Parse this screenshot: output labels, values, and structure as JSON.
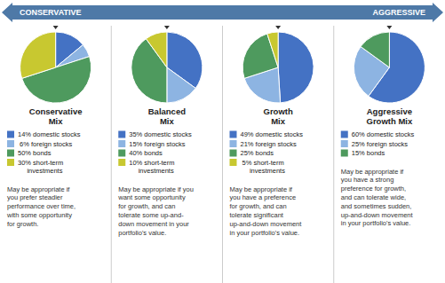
{
  "chart_data": [
    {
      "type": "pie",
      "title": "Conservative\nMix",
      "categories": [
        "14% domestic stocks",
        " 6% foreign stocks",
        "50% bonds",
        "30% short-term\n     investments"
      ],
      "values": [
        14,
        6,
        50,
        30
      ],
      "colors": [
        "#4472c4",
        "#8db4e2",
        "#4e9a5e",
        "#c8c830"
      ],
      "subtitle": "May be appropriate if\nyou prefer steadier\nperformance over time,\nwith some opportunity\nfor growth.",
      "annotations": [
        "CONSERVATIVE"
      ],
      "legend": "upper left"
    },
    {
      "type": "pie",
      "title": "Balanced\nMix",
      "categories": [
        "35% domestic stocks",
        "15% foreign stocks",
        "40% bonds",
        "10% short-term\n     investments"
      ],
      "values": [
        35,
        15,
        40,
        10
      ],
      "colors": [
        "#4472c4",
        "#8db4e2",
        "#4e9a5e",
        "#c8c830"
      ],
      "subtitle": "May be appropriate if you\nwant some opportunity\nfor growth, and can\ntolerate some up-and-\ndown movement in your\nportfolio's value.",
      "legend": "upper left"
    },
    {
      "type": "pie",
      "title": "Growth\nMix",
      "categories": [
        "49% domestic stocks",
        "21% foreign stocks",
        "25% bonds",
        " 5% short-term\n     investments"
      ],
      "values": [
        49,
        21,
        25,
        5
      ],
      "colors": [
        "#4472c4",
        "#8db4e2",
        "#4e9a5e",
        "#c8c830"
      ],
      "subtitle": "May be appropriate if\nyou have a preference\nfor growth, and can\ntolerate significant\nup-and-down movement\nin your portfolio's value.",
      "legend": "upper left"
    },
    {
      "type": "pie",
      "title": "Aggressive\nGrowth Mix",
      "categories": [
        "60% domestic stocks",
        "25% foreign stocks",
        "15% bonds"
      ],
      "values": [
        60,
        25,
        15
      ],
      "colors": [
        "#4472c4",
        "#8db4e2",
        "#4e9a5e"
      ],
      "subtitle": "May be appropriate if\nyou have a strong\npreference for growth,\nand can tolerate wide,\nand sometimes sudden,\nup-and-down movement\nin your portfolio's value.",
      "annotations": [
        "AGGRESSIVE"
      ],
      "legend": "upper left"
    }
  ]
}
